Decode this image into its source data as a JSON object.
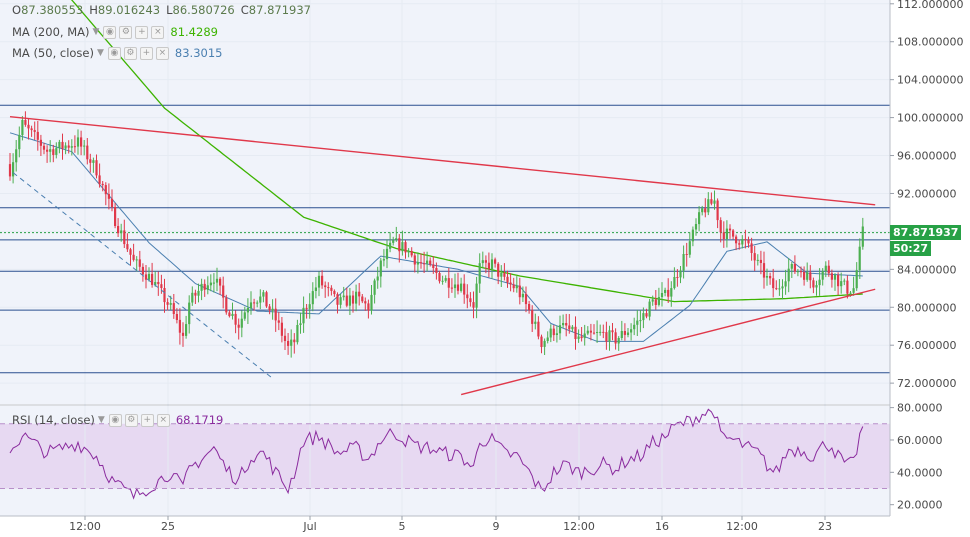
{
  "legend": {
    "ohlc": {
      "o_label": "O",
      "o": "87.380553",
      "h_label": "H",
      "h": "89.016243",
      "l_label": "L",
      "l": "86.580726",
      "c_label": "C",
      "c": "87.871937"
    },
    "ma200": {
      "label": "MA (200, MA)",
      "value": "81.4289",
      "color": "#3db300"
    },
    "ma50": {
      "label": "MA (50, close)",
      "value": "83.3015",
      "color": "#4a7fb0"
    },
    "rsi": {
      "label": "RSI (14, close)",
      "value": "68.1719",
      "color": "#8a2b9e"
    }
  },
  "price_tag": {
    "value": "87.871937",
    "countdown": "50:27",
    "color": "#27a146"
  },
  "icons": [
    "eye-icon",
    "gear-icon",
    "plus-icon",
    "close-icon",
    "chevron-down-icon"
  ],
  "chart_data": [
    {
      "type": "candlestick",
      "x_ticks": [
        "12:00",
        "25",
        "Jul",
        "5",
        "9",
        "12:00",
        "16",
        "12:00",
        "23"
      ],
      "y_ticks": [
        "112.000000",
        "108.000000",
        "104.000000",
        "100.000000",
        "96.000000",
        "92.000000",
        "88.000000",
        "84.000000",
        "80.000000",
        "76.000000",
        "72.000000"
      ],
      "ylim": [
        69.8,
        112.4
      ],
      "colors": {
        "up": "#4caf50",
        "down": "#e0384a",
        "grid": "#e6ebf3",
        "bg": "#f0f3fa"
      },
      "close_anchors": [
        [
          0,
          94.5
        ],
        [
          4,
          99.3
        ],
        [
          12,
          96.5
        ],
        [
          22,
          97.4
        ],
        [
          28,
          94.5
        ],
        [
          33,
          90.0
        ],
        [
          40,
          84.8
        ],
        [
          46,
          82.9
        ],
        [
          52,
          79.9
        ],
        [
          56,
          76.8
        ],
        [
          58,
          80.5
        ],
        [
          63,
          82.5
        ],
        [
          66,
          83.2
        ],
        [
          70,
          80.1
        ],
        [
          74,
          78.2
        ],
        [
          78,
          81.0
        ],
        [
          82,
          80.9
        ],
        [
          86,
          78.7
        ],
        [
          90,
          75.7
        ],
        [
          92,
          76.4
        ],
        [
          95,
          79.6
        ],
        [
          100,
          82.8
        ],
        [
          106,
          80.4
        ],
        [
          112,
          81.0
        ],
        [
          116,
          80.0
        ],
        [
          120,
          84.5
        ],
        [
          124,
          86.8
        ],
        [
          128,
          86.2
        ],
        [
          132,
          84.8
        ],
        [
          136,
          84.1
        ],
        [
          140,
          83.0
        ],
        [
          146,
          82.3
        ],
        [
          150,
          80.3
        ],
        [
          152,
          84.2
        ],
        [
          156,
          84.6
        ],
        [
          160,
          82.7
        ],
        [
          164,
          82.0
        ],
        [
          168,
          79.6
        ],
        [
          172,
          76.3
        ],
        [
          176,
          77.6
        ],
        [
          180,
          77.9
        ],
        [
          184,
          76.6
        ],
        [
          188,
          77.0
        ],
        [
          192,
          77.2
        ],
        [
          196,
          76.6
        ],
        [
          200,
          77.6
        ],
        [
          204,
          78.7
        ],
        [
          208,
          80.6
        ],
        [
          212,
          81.2
        ],
        [
          215,
          82.9
        ],
        [
          220,
          86.8
        ],
        [
          224,
          90.2
        ],
        [
          228,
          91.2
        ],
        [
          230,
          88.0
        ],
        [
          234,
          87.5
        ],
        [
          238,
          86.8
        ],
        [
          242,
          84.5
        ],
        [
          246,
          82.5
        ],
        [
          248,
          81.7
        ],
        [
          252,
          84.0
        ],
        [
          256,
          83.9
        ],
        [
          260,
          82.6
        ],
        [
          264,
          84.1
        ],
        [
          266,
          83.6
        ],
        [
          268,
          82.8
        ],
        [
          271,
          81.9
        ],
        [
          273,
          82.0
        ],
        [
          275,
          85.8
        ],
        [
          276,
          87.9
        ]
      ],
      "ma200_close_anchors": [
        [
          0,
          120.0
        ],
        [
          50,
          101.0
        ],
        [
          95,
          89.5
        ],
        [
          125,
          86.2
        ],
        [
          165,
          83.3
        ],
        [
          215,
          80.6
        ],
        [
          250,
          80.9
        ],
        [
          276,
          81.4
        ]
      ],
      "ma50_close_anchors": [
        [
          0,
          98.4
        ],
        [
          20,
          96.4
        ],
        [
          45,
          86.8
        ],
        [
          60,
          82.5
        ],
        [
          80,
          79.6
        ],
        [
          100,
          79.3
        ],
        [
          120,
          85.4
        ],
        [
          145,
          84.0
        ],
        [
          165,
          82.2
        ],
        [
          175,
          78.3
        ],
        [
          190,
          76.4
        ],
        [
          205,
          76.4
        ],
        [
          220,
          80.2
        ],
        [
          232,
          85.9
        ],
        [
          245,
          86.9
        ],
        [
          258,
          83.6
        ],
        [
          276,
          83.3
        ]
      ],
      "horizontal_levels": [
        101.3,
        90.5,
        87.1,
        83.8,
        79.7,
        73.1
      ],
      "current_price": 87.871937,
      "trendlines": [
        {
          "color": "#e0384a",
          "points": [
            [
              0,
              100.1
            ],
            [
              280,
              90.8
            ]
          ]
        },
        {
          "color": "#e0384a",
          "points": [
            [
              146,
              70.8
            ],
            [
              280,
              81.9
            ]
          ]
        },
        {
          "color": "#4a7fb0",
          "dashed": true,
          "points": [
            [
              1,
              94.2
            ],
            [
              85,
              72.5
            ]
          ]
        }
      ]
    },
    {
      "type": "line",
      "series": [
        {
          "name": "RSI (14, close)",
          "color": "#8a2b9e"
        }
      ],
      "y_ticks": [
        "80.0000",
        "60.0000",
        "40.0000",
        "20.0000"
      ],
      "ylim": [
        13.0,
        81.0
      ],
      "band": [
        30,
        70
      ],
      "anchors": [
        [
          0,
          53
        ],
        [
          4,
          63
        ],
        [
          12,
          52
        ],
        [
          22,
          58
        ],
        [
          28,
          50
        ],
        [
          33,
          35
        ],
        [
          40,
          25
        ],
        [
          46,
          32
        ],
        [
          52,
          40
        ],
        [
          56,
          30
        ],
        [
          58,
          42
        ],
        [
          63,
          50
        ],
        [
          66,
          55
        ],
        [
          70,
          42
        ],
        [
          74,
          35
        ],
        [
          78,
          50
        ],
        [
          82,
          52
        ],
        [
          86,
          40
        ],
        [
          90,
          30
        ],
        [
          92,
          40
        ],
        [
          95,
          60
        ],
        [
          100,
          62
        ],
        [
          106,
          52
        ],
        [
          112,
          55
        ],
        [
          116,
          48
        ],
        [
          120,
          60
        ],
        [
          124,
          65
        ],
        [
          128,
          60
        ],
        [
          132,
          56
        ],
        [
          136,
          55
        ],
        [
          140,
          52
        ],
        [
          146,
          50
        ],
        [
          150,
          42
        ],
        [
          152,
          60
        ],
        [
          156,
          60
        ],
        [
          160,
          52
        ],
        [
          164,
          50
        ],
        [
          168,
          40
        ],
        [
          172,
          28
        ],
        [
          176,
          40
        ],
        [
          180,
          45
        ],
        [
          184,
          40
        ],
        [
          188,
          42
        ],
        [
          192,
          45
        ],
        [
          196,
          42
        ],
        [
          200,
          48
        ],
        [
          204,
          50
        ],
        [
          208,
          58
        ],
        [
          212,
          62
        ],
        [
          215,
          68
        ],
        [
          220,
          72
        ],
        [
          224,
          76
        ],
        [
          228,
          78
        ],
        [
          230,
          62
        ],
        [
          234,
          60
        ],
        [
          238,
          56
        ],
        [
          242,
          52
        ],
        [
          246,
          42
        ],
        [
          248,
          40
        ],
        [
          252,
          54
        ],
        [
          256,
          54
        ],
        [
          260,
          50
        ],
        [
          264,
          58
        ],
        [
          266,
          56
        ],
        [
          268,
          50
        ],
        [
          271,
          44
        ],
        [
          273,
          46
        ],
        [
          275,
          62
        ],
        [
          276,
          68.2
        ]
      ]
    }
  ]
}
